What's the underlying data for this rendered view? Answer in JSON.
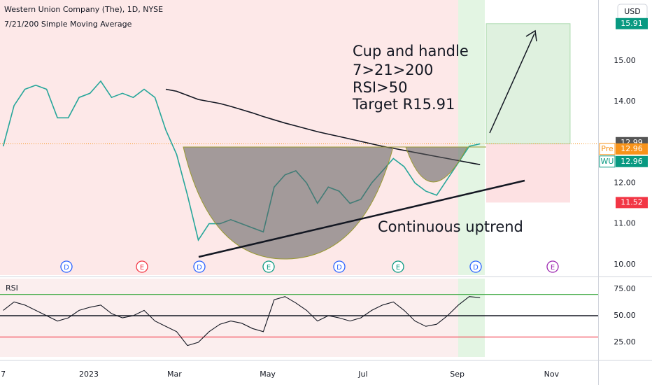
{
  "chart_data": [
    {
      "type": "line",
      "title": "Western Union Company (The), 1D, NYSE",
      "subtitle": "7/21/200 Simple Moving Average",
      "currency": "USD",
      "annotations": [
        "Cup and handle",
        "7>21>200",
        "RSI>50",
        "Target R15.91",
        "Continuous uptrend"
      ],
      "events": [
        "D",
        "E",
        "D",
        "E",
        "D",
        "E",
        "D",
        "E"
      ],
      "x": [
        0,
        1,
        2,
        3,
        4,
        5,
        6,
        7,
        8,
        9,
        10,
        11,
        12,
        13,
        14,
        15,
        16,
        17,
        18,
        19,
        20,
        21,
        22,
        23,
        24,
        25,
        26,
        27,
        28,
        29,
        30,
        31,
        32,
        33,
        34,
        35,
        36,
        37,
        38,
        39,
        40,
        41,
        42,
        43,
        44
      ],
      "xlim": [
        -0.3,
        54.9
      ],
      "ylim": [
        9.74,
        16.49
      ],
      "yticks": [
        {
          "value": 10,
          "label": "10.00"
        },
        {
          "value": 11,
          "label": "11.00"
        },
        {
          "value": 12,
          "label": "12.00"
        },
        {
          "value": 14,
          "label": "14.00"
        },
        {
          "value": 15,
          "label": "15.00"
        }
      ],
      "grid": false,
      "series": [
        {
          "color": "#26a69a",
          "values": [
            12.9,
            13.9,
            14.3,
            14.4,
            14.3,
            13.6,
            13.6,
            14.1,
            14.2,
            14.5,
            14.1,
            14.2,
            14.1,
            14.3,
            14.1,
            13.3,
            12.7,
            11.7,
            10.6,
            11.0,
            11.0,
            11.1,
            11.0,
            10.9,
            10.8,
            11.9,
            12.2,
            12.3,
            12.0,
            11.5,
            11.9,
            11.8,
            11.5,
            11.6,
            12.0,
            12.3,
            12.6,
            12.4,
            12.0,
            11.8,
            11.7,
            12.1,
            12.5,
            12.9,
            12.96
          ]
        },
        {
          "color": "#131722",
          "values": [
            null,
            null,
            null,
            null,
            null,
            null,
            null,
            null,
            null,
            null,
            null,
            null,
            null,
            null,
            null,
            14.3,
            14.25,
            14.15,
            14.05,
            14.0,
            13.95,
            13.88,
            13.8,
            13.72,
            13.63,
            13.55,
            13.47,
            13.4,
            13.33,
            13.26,
            13.2,
            13.14,
            13.08,
            13.02,
            12.96,
            12.9,
            12.85,
            12.8,
            12.75,
            12.7,
            12.65,
            12.6,
            12.55,
            12.5,
            12.45
          ]
        }
      ],
      "price_tags": [
        {
          "value": 15.91,
          "color": "#089981"
        },
        {
          "value": 12.99,
          "color": "#555555"
        },
        {
          "label": "Pre",
          "value": 12.96,
          "color": "#f7931a"
        },
        {
          "label": "WU",
          "value": 12.96,
          "color": "#089981"
        },
        {
          "value": 11.52,
          "color": "#f23645"
        }
      ]
    },
    {
      "type": "line",
      "title": "RSI",
      "x": [
        0,
        1,
        2,
        3,
        4,
        5,
        6,
        7,
        8,
        9,
        10,
        11,
        12,
        13,
        14,
        15,
        16,
        17,
        18,
        19,
        20,
        21,
        22,
        23,
        24,
        25,
        26,
        27,
        28,
        29,
        30,
        31,
        32,
        33,
        34,
        35,
        36,
        37,
        38,
        39,
        40,
        41,
        42,
        43,
        44
      ],
      "xlim": [
        -0.3,
        54.9
      ],
      "xticks": [
        {
          "value": 0,
          "label": "7"
        },
        {
          "value": 7.9,
          "label": "2023"
        },
        {
          "value": 15.8,
          "label": "Mar"
        },
        {
          "value": 24.4,
          "label": "May"
        },
        {
          "value": 33.2,
          "label": "Jul"
        },
        {
          "value": 41.9,
          "label": "Sep"
        },
        {
          "value": 50.6,
          "label": "Nov"
        }
      ],
      "ylim": [
        11.2,
        84.9
      ],
      "yticks": [
        {
          "value": 25,
          "label": "25.00"
        },
        {
          "value": 50,
          "label": "50.00"
        },
        {
          "value": 75,
          "label": "75.00"
        }
      ],
      "levels": [
        70,
        50,
        30
      ],
      "level_colors": [
        "#4caf50",
        "#131722",
        "#f23645"
      ],
      "series": [
        {
          "color": "#131722",
          "values": [
            55,
            63,
            60,
            55,
            50,
            45,
            48,
            55,
            58,
            60,
            52,
            48,
            50,
            55,
            45,
            40,
            35,
            22,
            25,
            35,
            42,
            45,
            43,
            38,
            35,
            65,
            68,
            62,
            55,
            45,
            50,
            48,
            45,
            48,
            55,
            60,
            63,
            55,
            45,
            40,
            42,
            50,
            60,
            68,
            67
          ]
        }
      ]
    }
  ]
}
